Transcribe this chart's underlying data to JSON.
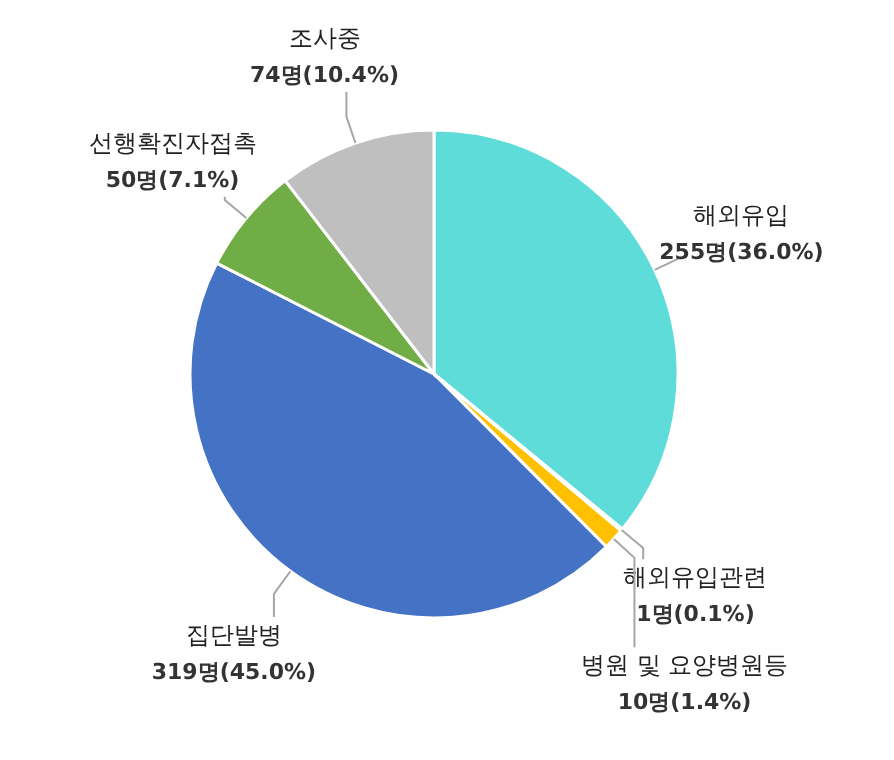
{
  "chart_data": {
    "type": "pie",
    "categories": [
      "해외유입",
      "해외유입관련",
      "병원 및 요양병원등",
      "집단발병",
      "선행확진자접촉",
      "조사중"
    ],
    "values": [
      255,
      1,
      10,
      319,
      50,
      74
    ],
    "colors": [
      "#5edcd9",
      "#f4a11c",
      "#ffc000",
      "#4472c4",
      "#70ad47",
      "#bfbfbf"
    ],
    "value_labels": [
      "255명(36.0%)",
      "1명(0.1%)",
      "10명(1.4%)",
      "319명(45.0%)",
      "50명(7.1%)",
      "74명(10.4%)"
    ]
  }
}
